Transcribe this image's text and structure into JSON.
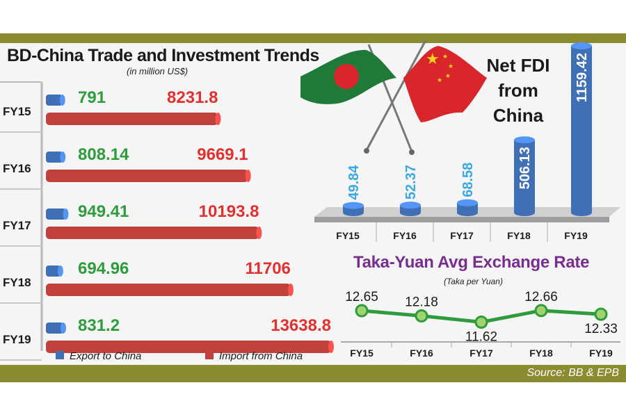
{
  "source": "Source: BB & EPB",
  "colors": {
    "band": "#8b8c31",
    "export": "#3f6fb5",
    "import": "#c0403c",
    "export_text": "#2e9c3a",
    "import_text": "#e0312f",
    "fdi_bar": "#3f6fb5",
    "fdi_small_text": "#3aa9df",
    "fx_line": "#2e9c3a",
    "fx_title": "#7b2c8f"
  },
  "chart_data": [
    {
      "type": "bar",
      "orientation": "horizontal",
      "title": "BD-China Trade and Investment Trends",
      "subtitle": "(in million US$)",
      "categories": [
        "FY15",
        "FY16",
        "FY17",
        "FY18",
        "FY19"
      ],
      "series": [
        {
          "name": "Export to China",
          "values": [
            791,
            808.14,
            949.41,
            694.96,
            831.2
          ]
        },
        {
          "name": "Import from China",
          "values": [
            8231.8,
            9669.1,
            10193.8,
            11706,
            13638.8
          ]
        }
      ],
      "value_labels": {
        "export": [
          "791",
          "808.14",
          "949.41",
          "694.96",
          "831.2"
        ],
        "import": [
          "8231.8",
          "9669.1",
          "10193.8",
          "11706",
          "13638.8"
        ]
      },
      "legend": "bottom"
    },
    {
      "type": "bar",
      "title": "Net FDI from China",
      "categories": [
        "FY15",
        "FY16",
        "FY17",
        "FY18",
        "FY19"
      ],
      "values": [
        49.84,
        52.37,
        68.58,
        506.13,
        1159.42
      ],
      "value_labels": [
        "49.84",
        "52.37",
        "68.58",
        "506.13",
        "1159.42"
      ]
    },
    {
      "type": "line",
      "title": "Taka-Yuan Avg Exchange Rate",
      "subtitle": "(Taka per Yuan)",
      "categories": [
        "FY15",
        "FY16",
        "FY17",
        "FY18",
        "FY19"
      ],
      "values": [
        12.65,
        12.18,
        11.62,
        12.66,
        12.33
      ],
      "value_labels": [
        "12.65",
        "12.18",
        "11.62",
        "12.66",
        "12.33"
      ]
    }
  ]
}
